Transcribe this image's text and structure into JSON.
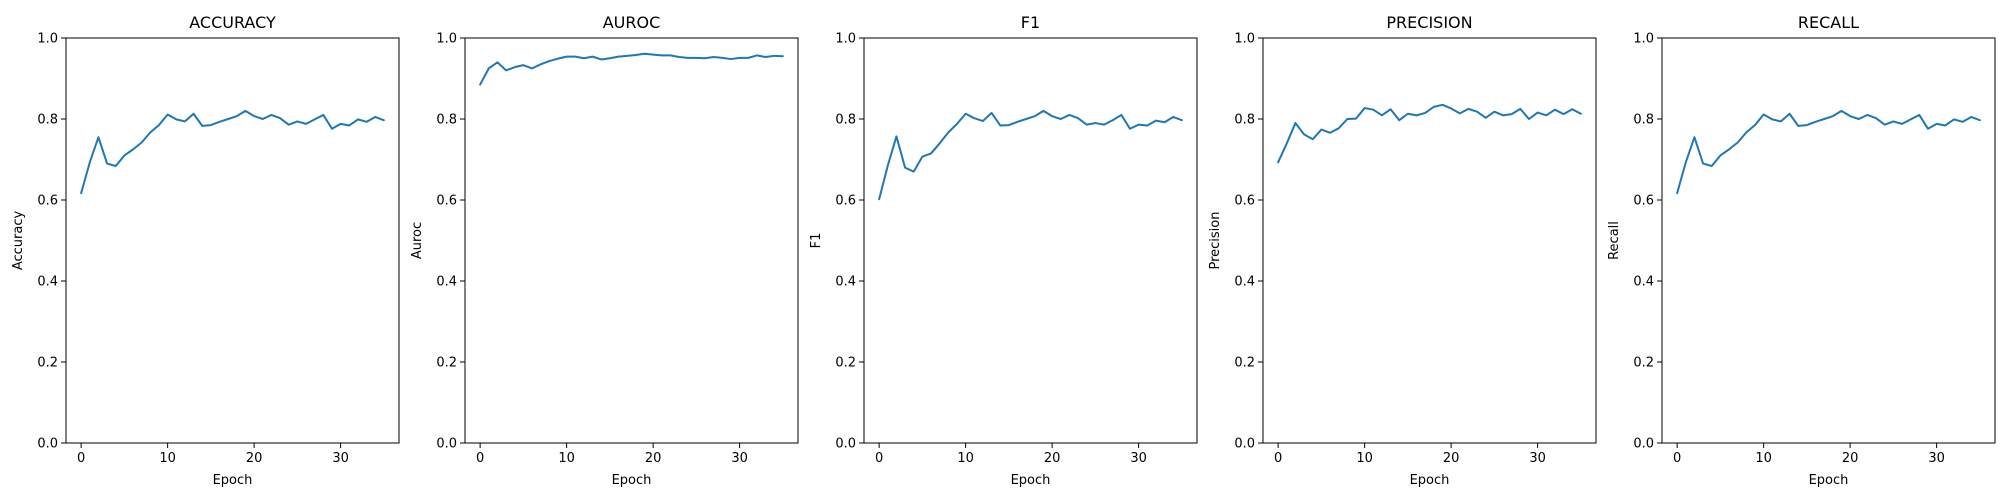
{
  "chart_data": [
    {
      "type": "line",
      "title": "ACCURACY",
      "xlabel": "Epoch",
      "ylabel": "Accuracy",
      "xlim": [
        -1.75,
        36.75
      ],
      "ylim": [
        0.0,
        1.0
      ],
      "xticks": [
        0,
        10,
        20,
        30
      ],
      "yticks": [
        0.0,
        0.2,
        0.4,
        0.6,
        0.8,
        1.0
      ],
      "x": [
        0,
        1,
        2,
        3,
        4,
        5,
        6,
        7,
        8,
        9,
        10,
        11,
        12,
        13,
        14,
        15,
        16,
        17,
        18,
        19,
        20,
        21,
        22,
        23,
        24,
        25,
        26,
        27,
        28,
        29,
        30,
        31,
        32,
        33,
        34,
        35
      ],
      "series": [
        {
          "color": "#1f77b4",
          "values": [
            0.617,
            0.693,
            0.755,
            0.69,
            0.684,
            0.71,
            0.725,
            0.742,
            0.767,
            0.785,
            0.811,
            0.799,
            0.794,
            0.813,
            0.783,
            0.785,
            0.793,
            0.8,
            0.807,
            0.82,
            0.807,
            0.8,
            0.81,
            0.802,
            0.786,
            0.794,
            0.788,
            0.799,
            0.81,
            0.776,
            0.788,
            0.784,
            0.799,
            0.793,
            0.805,
            0.797
          ]
        }
      ]
    },
    {
      "type": "line",
      "title": "AUROC",
      "xlabel": "Epoch",
      "ylabel": "Auroc",
      "xlim": [
        -1.75,
        36.75
      ],
      "ylim": [
        0.0,
        1.0
      ],
      "xticks": [
        0,
        10,
        20,
        30
      ],
      "yticks": [
        0.0,
        0.2,
        0.4,
        0.6,
        0.8,
        1.0
      ],
      "x": [
        0,
        1,
        2,
        3,
        4,
        5,
        6,
        7,
        8,
        9,
        10,
        11,
        12,
        13,
        14,
        15,
        16,
        17,
        18,
        19,
        20,
        21,
        22,
        23,
        24,
        25,
        26,
        27,
        28,
        29,
        30,
        31,
        32,
        33,
        34,
        35
      ],
      "series": [
        {
          "color": "#1f77b4",
          "values": [
            0.885,
            0.925,
            0.94,
            0.92,
            0.928,
            0.933,
            0.925,
            0.935,
            0.943,
            0.949,
            0.954,
            0.954,
            0.95,
            0.954,
            0.947,
            0.95,
            0.954,
            0.956,
            0.958,
            0.961,
            0.959,
            0.957,
            0.957,
            0.953,
            0.951,
            0.951,
            0.95,
            0.953,
            0.951,
            0.948,
            0.951,
            0.951,
            0.957,
            0.953,
            0.956,
            0.955
          ]
        }
      ]
    },
    {
      "type": "line",
      "title": "F1",
      "xlabel": "Epoch",
      "ylabel": "F1",
      "xlim": [
        -1.75,
        36.75
      ],
      "ylim": [
        0.0,
        1.0
      ],
      "xticks": [
        0,
        10,
        20,
        30
      ],
      "yticks": [
        0.0,
        0.2,
        0.4,
        0.6,
        0.8,
        1.0
      ],
      "x": [
        0,
        1,
        2,
        3,
        4,
        5,
        6,
        7,
        8,
        9,
        10,
        11,
        12,
        13,
        14,
        15,
        16,
        17,
        18,
        19,
        20,
        21,
        22,
        23,
        24,
        25,
        26,
        27,
        28,
        29,
        30,
        31,
        32,
        33,
        34,
        35
      ],
      "series": [
        {
          "color": "#1f77b4",
          "values": [
            0.602,
            0.685,
            0.757,
            0.68,
            0.67,
            0.707,
            0.715,
            0.74,
            0.767,
            0.788,
            0.813,
            0.802,
            0.795,
            0.815,
            0.784,
            0.785,
            0.793,
            0.8,
            0.807,
            0.82,
            0.807,
            0.8,
            0.81,
            0.802,
            0.786,
            0.79,
            0.786,
            0.797,
            0.81,
            0.776,
            0.786,
            0.784,
            0.796,
            0.792,
            0.805,
            0.797
          ]
        }
      ]
    },
    {
      "type": "line",
      "title": "PRECISION",
      "xlabel": "Epoch",
      "ylabel": "Precision",
      "xlim": [
        -1.75,
        36.75
      ],
      "ylim": [
        0.0,
        1.0
      ],
      "xticks": [
        0,
        10,
        20,
        30
      ],
      "yticks": [
        0.0,
        0.2,
        0.4,
        0.6,
        0.8,
        1.0
      ],
      "x": [
        0,
        1,
        2,
        3,
        4,
        5,
        6,
        7,
        8,
        9,
        10,
        11,
        12,
        13,
        14,
        15,
        16,
        17,
        18,
        19,
        20,
        21,
        22,
        23,
        24,
        25,
        26,
        27,
        28,
        29,
        30,
        31,
        32,
        33,
        34,
        35
      ],
      "series": [
        {
          "color": "#1f77b4",
          "values": [
            0.693,
            0.74,
            0.79,
            0.762,
            0.75,
            0.774,
            0.766,
            0.777,
            0.8,
            0.801,
            0.827,
            0.823,
            0.809,
            0.824,
            0.797,
            0.813,
            0.809,
            0.815,
            0.83,
            0.835,
            0.826,
            0.814,
            0.825,
            0.818,
            0.803,
            0.818,
            0.809,
            0.812,
            0.825,
            0.8,
            0.816,
            0.809,
            0.823,
            0.812,
            0.824,
            0.813
          ]
        }
      ]
    },
    {
      "type": "line",
      "title": "RECALL",
      "xlabel": "Epoch",
      "ylabel": "Recall",
      "xlim": [
        -1.75,
        36.75
      ],
      "ylim": [
        0.0,
        1.0
      ],
      "xticks": [
        0,
        10,
        20,
        30
      ],
      "yticks": [
        0.0,
        0.2,
        0.4,
        0.6,
        0.8,
        1.0
      ],
      "x": [
        0,
        1,
        2,
        3,
        4,
        5,
        6,
        7,
        8,
        9,
        10,
        11,
        12,
        13,
        14,
        15,
        16,
        17,
        18,
        19,
        20,
        21,
        22,
        23,
        24,
        25,
        26,
        27,
        28,
        29,
        30,
        31,
        32,
        33,
        34,
        35
      ],
      "series": [
        {
          "color": "#1f77b4",
          "values": [
            0.617,
            0.693,
            0.755,
            0.69,
            0.684,
            0.71,
            0.725,
            0.742,
            0.767,
            0.785,
            0.811,
            0.799,
            0.794,
            0.813,
            0.783,
            0.785,
            0.793,
            0.8,
            0.807,
            0.82,
            0.807,
            0.8,
            0.81,
            0.802,
            0.786,
            0.794,
            0.788,
            0.799,
            0.81,
            0.776,
            0.788,
            0.784,
            0.799,
            0.793,
            0.805,
            0.797
          ]
        }
      ]
    }
  ]
}
